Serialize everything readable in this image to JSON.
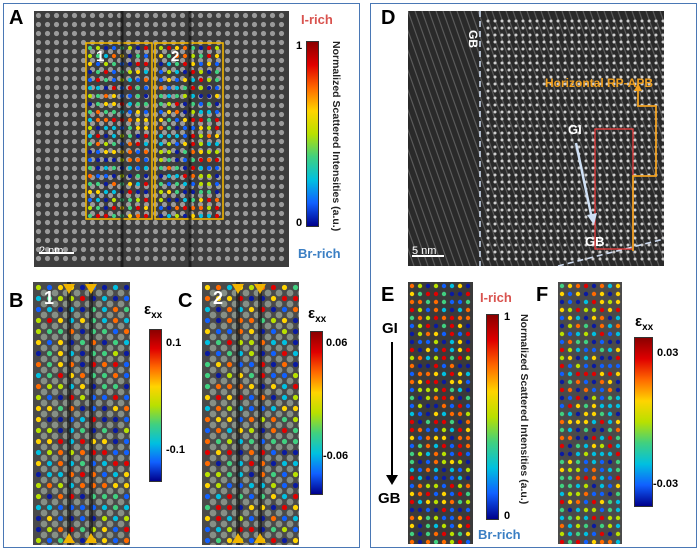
{
  "panels": {
    "A": {
      "label": "A",
      "region_labels": [
        "1",
        "2"
      ],
      "scale_bar": "2 nm"
    },
    "B": {
      "label": "B",
      "region_label": "1"
    },
    "C": {
      "label": "C",
      "region_label": "2"
    },
    "D": {
      "label": "D",
      "gb_label": "GB",
      "apb_label": "Horizontal RP-APB",
      "gi_label": "GI",
      "gb_bottom_label": "GB",
      "scale_bar": "5 nm"
    },
    "E": {
      "label": "E",
      "top_label": "GI",
      "bottom_label": "GB"
    },
    "F": {
      "label": "F"
    }
  },
  "colorbar_A": {
    "top_label": "I-rich",
    "bottom_label": "Br-rich",
    "ticks": [
      "1",
      "0"
    ],
    "title": "Normalized Scattered Intensities (a.u.)"
  },
  "colorbar_B": {
    "symbol": "ε",
    "subscript": "xx",
    "ticks": [
      "0.1",
      "-0.1"
    ]
  },
  "colorbar_C": {
    "symbol": "ε",
    "subscript": "xx",
    "ticks": [
      "0.06",
      "-0.06"
    ]
  },
  "colorbar_E": {
    "top_label": "I-rich",
    "bottom_label": "Br-rich",
    "ticks": [
      "1",
      "0"
    ],
    "title": "Normalized Scattered Intensities (a.u.)"
  },
  "colorbar_F": {
    "symbol": "ε",
    "subscript": "xx",
    "ticks": [
      "0.03",
      "-0.03"
    ]
  },
  "colors": {
    "frame": "#4a78b5",
    "i_rich": "#d9534f",
    "br_rich": "#3b7fc4",
    "box_outline": "#f0b400",
    "apb": "#f0a020"
  }
}
